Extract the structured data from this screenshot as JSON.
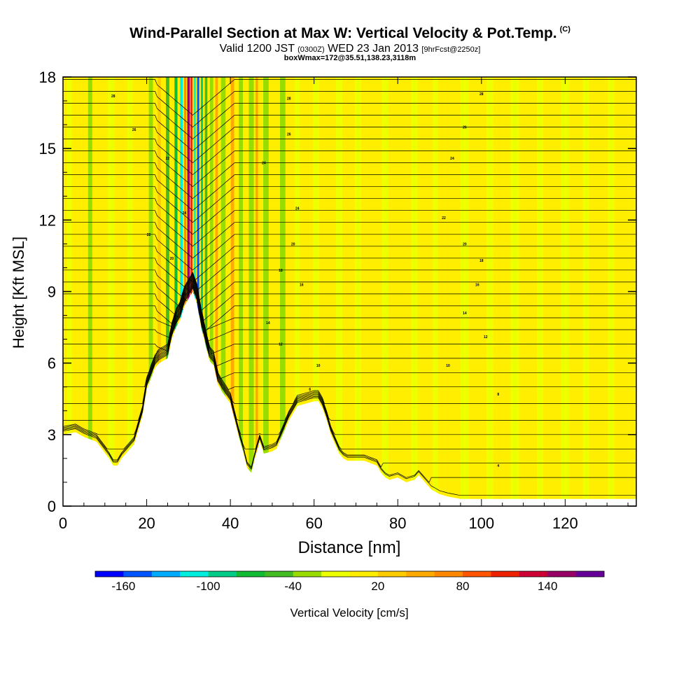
{
  "header": {
    "title": "Wind-Parallel Section at Max W: Vertical Velocity & Pot.Temp.",
    "title_mark": "(C)",
    "valid_prefix": "Valid 1200 JST",
    "valid_zulu": "(0300Z)",
    "valid_date": "WED 23 Jan 2013",
    "forecast": "[9hrFcst@2250z]",
    "box_info": "boxWmax=172@35.51,138.23,3118m"
  },
  "chart_data": {
    "type": "heatmap",
    "title": "Wind-Parallel Section at Max W: Vertical Velocity & Pot.Temp.",
    "xlabel": "Distance [nm]",
    "ylabel": "Height [Kft MSL]",
    "xlim": [
      0,
      137
    ],
    "ylim": [
      0,
      18
    ],
    "x_ticks": [
      0,
      20,
      40,
      60,
      80,
      100,
      120
    ],
    "y_ticks": [
      0,
      3,
      6,
      9,
      12,
      15,
      18
    ],
    "terrain": {
      "x": [
        0,
        3,
        5,
        8,
        11,
        12,
        13,
        14,
        15,
        17,
        19,
        20,
        22,
        23,
        24,
        25,
        26,
        27,
        28,
        29,
        30,
        31,
        32,
        33,
        34,
        35,
        36,
        37,
        38,
        40,
        41,
        42,
        43,
        44,
        45,
        46,
        47,
        48,
        50,
        51,
        52,
        53,
        54,
        55,
        56,
        58,
        60,
        61,
        62,
        63,
        64,
        65,
        66,
        67,
        68,
        70,
        72,
        75,
        76,
        77,
        78,
        80,
        82,
        84,
        85,
        86,
        87,
        88,
        90,
        92,
        95,
        98,
        100,
        103,
        104,
        105,
        106,
        107,
        108,
        109,
        110,
        112,
        115,
        118,
        120,
        122,
        125,
        128,
        130,
        133,
        137
      ],
      "h": [
        3.0,
        3.1,
        2.9,
        2.7,
        2.0,
        1.7,
        1.7,
        2.0,
        2.2,
        2.6,
        3.8,
        4.9,
        5.8,
        6.0,
        6.1,
        6.2,
        7.0,
        7.5,
        7.8,
        8.4,
        8.7,
        9.0,
        8.5,
        7.5,
        6.8,
        6.1,
        5.9,
        5.1,
        4.8,
        4.3,
        3.6,
        2.9,
        2.3,
        1.6,
        1.4,
        2.1,
        2.7,
        2.2,
        2.3,
        2.4,
        2.8,
        3.2,
        3.6,
        3.9,
        4.2,
        4.3,
        4.4,
        4.4,
        4.1,
        3.6,
        3.0,
        2.6,
        2.2,
        2.0,
        1.9,
        1.9,
        1.9,
        1.7,
        1.4,
        1.2,
        1.1,
        1.2,
        1.0,
        1.1,
        1.3,
        1.1,
        0.9,
        0.7,
        0.5,
        0.4,
        0.3,
        0.3,
        0.3,
        0.3,
        0.3,
        0.3,
        0.3,
        0.3,
        0.3,
        0.3,
        0.3,
        0.3,
        0.3,
        0.3,
        0.3,
        0.3,
        0.3,
        0.3,
        0.3,
        0.3,
        0.3
      ]
    },
    "bands": [
      {
        "x": 1.5,
        "w": 1.2,
        "v": -20
      },
      {
        "x": 6.5,
        "w": 1.0,
        "v": -30
      },
      {
        "x": 11.5,
        "w": 1.5,
        "v": -20
      },
      {
        "x": 16,
        "w": 1.2,
        "v": -20
      },
      {
        "x": 21,
        "w": 1.0,
        "v": -30
      },
      {
        "x": 23,
        "w": 0.8,
        "v": 30
      },
      {
        "x": 25,
        "w": 0.8,
        "v": -50
      },
      {
        "x": 27,
        "w": 0.7,
        "v": -70
      },
      {
        "x": 28.3,
        "w": 0.6,
        "v": -110
      },
      {
        "x": 29.2,
        "w": 0.5,
        "v": 60
      },
      {
        "x": 30.0,
        "w": 0.6,
        "v": 150
      },
      {
        "x": 30.7,
        "w": 0.45,
        "v": 110
      },
      {
        "x": 31.5,
        "w": 0.5,
        "v": -120
      },
      {
        "x": 32.3,
        "w": 0.5,
        "v": -160
      },
      {
        "x": 33.2,
        "w": 0.5,
        "v": -90
      },
      {
        "x": 34.2,
        "w": 0.6,
        "v": -50
      },
      {
        "x": 35.5,
        "w": 0.8,
        "v": -30
      },
      {
        "x": 36.7,
        "w": 0.6,
        "v": 40
      },
      {
        "x": 38.3,
        "w": 1.1,
        "v": -40
      },
      {
        "x": 40.5,
        "w": 0.8,
        "v": 50
      },
      {
        "x": 42.5,
        "w": 1.0,
        "v": -40
      },
      {
        "x": 45.0,
        "w": 1.2,
        "v": -30
      },
      {
        "x": 46.3,
        "w": 0.6,
        "v": 40
      },
      {
        "x": 48.5,
        "w": 1.3,
        "v": -30
      },
      {
        "x": 52.5,
        "w": 1.3,
        "v": -30
      },
      {
        "x": 56.0,
        "w": 1.2,
        "v": -20
      },
      {
        "x": 60.5,
        "w": 1.5,
        "v": -20
      },
      {
        "x": 66,
        "w": 1.5,
        "v": -20
      },
      {
        "x": 70.5,
        "w": 1.5,
        "v": -20
      },
      {
        "x": 77,
        "w": 1.5,
        "v": -20
      },
      {
        "x": 84,
        "w": 1.5,
        "v": -20
      },
      {
        "x": 89,
        "w": 1.2,
        "v": -20
      },
      {
        "x": 96,
        "w": 2.0,
        "v": -20
      },
      {
        "x": 102,
        "w": 1.6,
        "v": -20
      },
      {
        "x": 108,
        "w": 2.0,
        "v": -20
      },
      {
        "x": 114,
        "w": 1.5,
        "v": -20
      },
      {
        "x": 120,
        "w": 1.8,
        "v": -20
      },
      {
        "x": 125,
        "w": 1.5,
        "v": -20
      },
      {
        "x": 131,
        "w": 1.5,
        "v": -20
      }
    ],
    "isentropes": {
      "levels_kft": [
        0.6,
        1.2,
        1.8,
        2.4,
        3.0,
        3.6,
        4.3,
        5.0,
        5.6,
        6.2,
        6.8,
        7.4,
        7.9,
        8.4,
        8.9,
        9.4,
        9.9,
        10.4,
        10.9,
        11.4,
        11.9,
        12.4,
        12.9,
        13.4,
        13.9,
        14.4,
        14.9,
        15.4,
        15.9,
        16.4,
        16.9,
        17.4,
        17.9
      ],
      "labels": [
        {
          "x": 104,
          "h": 1.7,
          "text": "4"
        },
        {
          "x": 59,
          "h": 4.9,
          "text": "6"
        },
        {
          "x": 104,
          "h": 4.7,
          "text": "8"
        },
        {
          "x": 61,
          "h": 5.9,
          "text": "10"
        },
        {
          "x": 92,
          "h": 5.9,
          "text": "10"
        },
        {
          "x": 52,
          "h": 6.8,
          "text": "12"
        },
        {
          "x": 101,
          "h": 7.1,
          "text": "12"
        },
        {
          "x": 49,
          "h": 7.7,
          "text": "14"
        },
        {
          "x": 96,
          "h": 8.1,
          "text": "14"
        },
        {
          "x": 29,
          "h": 8.9,
          "text": "16"
        },
        {
          "x": 57,
          "h": 9.3,
          "text": "16"
        },
        {
          "x": 99,
          "h": 9.3,
          "text": "16"
        },
        {
          "x": 52,
          "h": 9.9,
          "text": "18"
        },
        {
          "x": 100,
          "h": 10.3,
          "text": "18"
        },
        {
          "x": 26,
          "h": 10.4,
          "text": "20"
        },
        {
          "x": 55,
          "h": 11.0,
          "text": "20"
        },
        {
          "x": 96,
          "h": 11.0,
          "text": "20"
        },
        {
          "x": 20.5,
          "h": 11.4,
          "text": "22"
        },
        {
          "x": 91,
          "h": 12.1,
          "text": "22"
        },
        {
          "x": 29,
          "h": 12.3,
          "text": "24"
        },
        {
          "x": 56,
          "h": 12.5,
          "text": "24"
        },
        {
          "x": 25,
          "h": 14.6,
          "text": "22"
        },
        {
          "x": 48,
          "h": 14.4,
          "text": "24"
        },
        {
          "x": 93,
          "h": 14.6,
          "text": "24"
        },
        {
          "x": 17,
          "h": 15.8,
          "text": "26"
        },
        {
          "x": 54,
          "h": 15.6,
          "text": "26"
        },
        {
          "x": 96,
          "h": 15.9,
          "text": "26"
        },
        {
          "x": 12,
          "h": 17.2,
          "text": "28"
        },
        {
          "x": 54,
          "h": 17.1,
          "text": "28"
        },
        {
          "x": 100,
          "h": 17.3,
          "text": "28"
        }
      ]
    },
    "colorbar": {
      "label": "Vertical Velocity [cm/s]",
      "ticks": [
        "-160",
        "-100",
        "-40",
        "20",
        "80",
        "140"
      ],
      "colors": [
        "#0000ff",
        "#0055ff",
        "#00aaff",
        "#00eedd",
        "#00cc88",
        "#11bb33",
        "#44bb22",
        "#99dd00",
        "#eeff00",
        "#ffee00",
        "#ffcc00",
        "#ffaa00",
        "#ff8800",
        "#ff5500",
        "#ee2200",
        "#cc0033",
        "#990066",
        "#660099"
      ]
    }
  }
}
